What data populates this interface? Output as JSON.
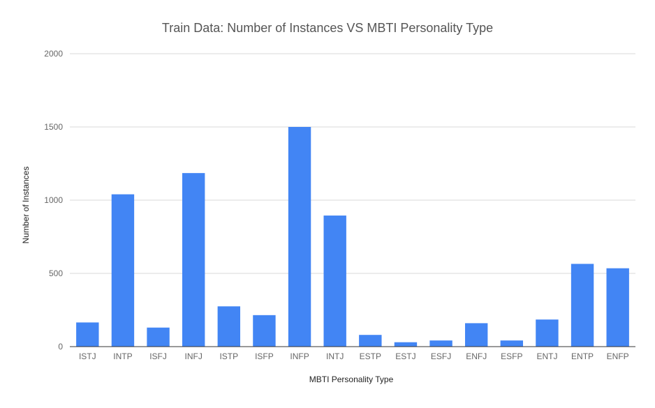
{
  "chart_data": {
    "type": "bar",
    "title": "Train Data: Number of Instances VS MBTI Personality Type",
    "xlabel": "MBTI Personality Type",
    "ylabel": "Number of Instances",
    "ylim": [
      0,
      2000
    ],
    "yticks": [
      "0",
      "500",
      "1000",
      "1500",
      "2000"
    ],
    "grid": true,
    "legend": "none",
    "bar_color": "#4285f4",
    "categories": [
      "ISTJ",
      "INTP",
      "ISFJ",
      "INFJ",
      "ISTP",
      "ISFP",
      "INFP",
      "INTJ",
      "ESTP",
      "ESTJ",
      "ESFJ",
      "ENFJ",
      "ESFP",
      "ENTJ",
      "ENTP",
      "ENFP"
    ],
    "series": [
      {
        "values": [
          165,
          1040,
          130,
          1185,
          275,
          215,
          1500,
          895,
          80,
          30,
          42,
          160,
          42,
          185,
          565,
          535
        ]
      }
    ]
  }
}
